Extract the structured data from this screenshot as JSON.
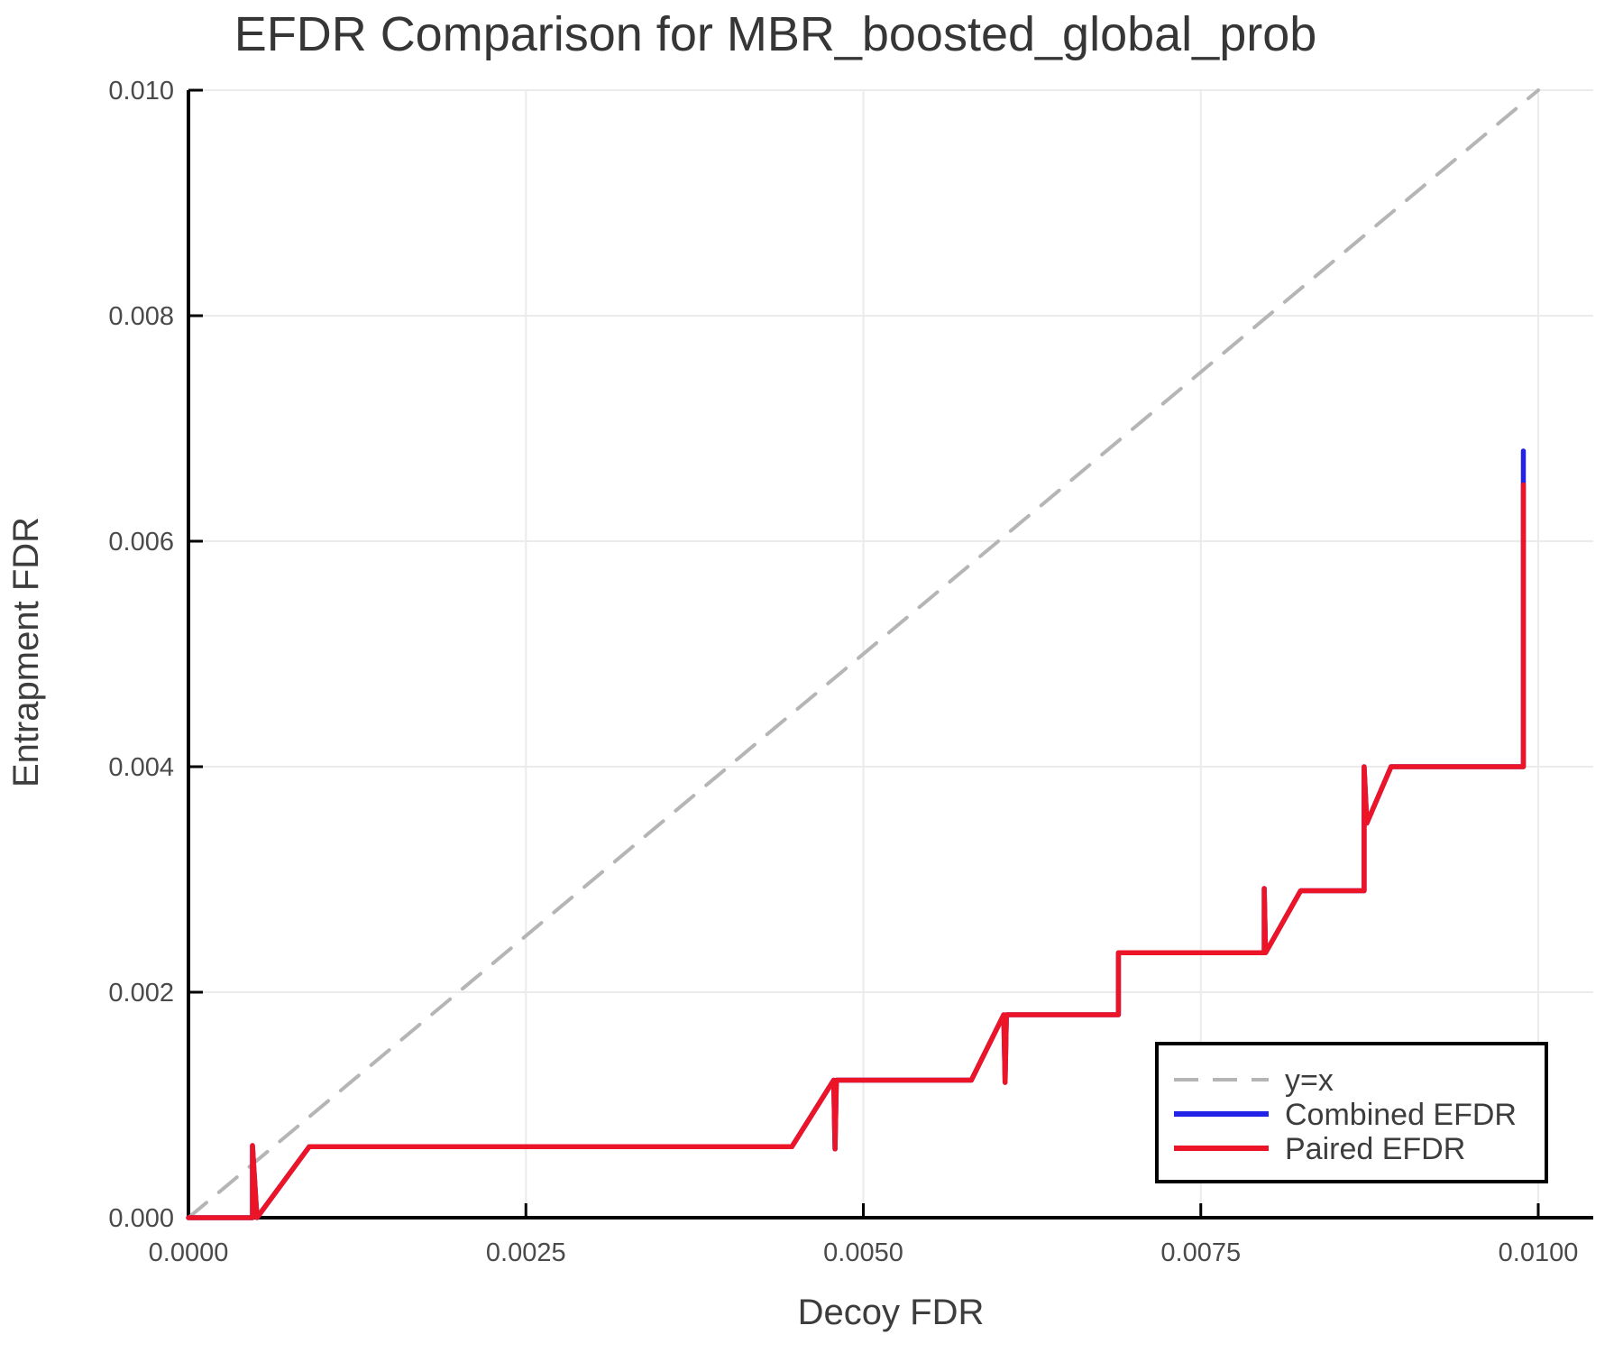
{
  "chart_data": {
    "type": "line",
    "title": "EFDR Comparison for MBR_boosted_global_prob",
    "xlabel": "Decoy FDR",
    "ylabel": "Entrapment FDR",
    "xlim": [
      0.0,
      0.010407
    ],
    "ylim": [
      0.0,
      0.01
    ],
    "grid": true,
    "legend_position": "lower right",
    "x_tick_values": [
      0.0,
      0.0025,
      0.005,
      0.0075,
      0.01
    ],
    "x_tick_labels": [
      "0.0000",
      "0.0025",
      "0.0050",
      "0.0075",
      "0.0100"
    ],
    "y_tick_values": [
      0.0,
      0.002,
      0.004,
      0.006,
      0.008,
      0.01
    ],
    "y_tick_labels": [
      "0.000",
      "0.002",
      "0.004",
      "0.006",
      "0.008",
      "0.010"
    ],
    "series": [
      {
        "name": "y=x",
        "color": "#b5b5b5",
        "style": "dashed",
        "width": 4,
        "points": [
          [
            0.0,
            0.0
          ],
          [
            0.01,
            0.01
          ]
        ]
      },
      {
        "name": "Combined EFDR",
        "color": "#2323e8",
        "style": "solid",
        "width": 5.5,
        "points": [
          [
            0.0,
            0.0
          ],
          [
            0.000474,
            0.0
          ],
          [
            0.000474,
            0.00064
          ],
          [
            0.000508,
            0.0
          ],
          [
            0.000895,
            0.00063
          ],
          [
            0.00447,
            0.00063
          ],
          [
            0.00478,
            0.00122
          ],
          [
            0.00479,
            0.00061
          ],
          [
            0.0048,
            0.00122
          ],
          [
            0.0058,
            0.00122
          ],
          [
            0.00604,
            0.0018
          ],
          [
            0.00605,
            0.0012
          ],
          [
            0.00606,
            0.0018
          ],
          [
            0.00689,
            0.0018
          ],
          [
            0.00689,
            0.00235
          ],
          [
            0.00797,
            0.00235
          ],
          [
            0.00797,
            0.00292
          ],
          [
            0.00798,
            0.00235
          ],
          [
            0.00824,
            0.0029
          ],
          [
            0.00871,
            0.0029
          ],
          [
            0.00871,
            0.004
          ],
          [
            0.00873,
            0.0035
          ],
          [
            0.00891,
            0.004
          ],
          [
            0.00989,
            0.004
          ],
          [
            0.00989,
            0.0068
          ]
        ]
      },
      {
        "name": "Paired EFDR",
        "color": "#ec1528",
        "style": "solid",
        "width": 5.5,
        "points": [
          [
            0.0,
            0.0
          ],
          [
            0.000474,
            0.0
          ],
          [
            0.000474,
            0.00064
          ],
          [
            0.000508,
            0.0
          ],
          [
            0.000895,
            0.00063
          ],
          [
            0.00447,
            0.00063
          ],
          [
            0.00478,
            0.00122
          ],
          [
            0.00479,
            0.00061
          ],
          [
            0.0048,
            0.00122
          ],
          [
            0.0058,
            0.00122
          ],
          [
            0.00604,
            0.0018
          ],
          [
            0.00605,
            0.0012
          ],
          [
            0.00606,
            0.0018
          ],
          [
            0.00689,
            0.0018
          ],
          [
            0.00689,
            0.00235
          ],
          [
            0.00797,
            0.00235
          ],
          [
            0.00797,
            0.00292
          ],
          [
            0.00798,
            0.00235
          ],
          [
            0.00824,
            0.0029
          ],
          [
            0.00871,
            0.0029
          ],
          [
            0.00871,
            0.004
          ],
          [
            0.00873,
            0.0035
          ],
          [
            0.00891,
            0.004
          ],
          [
            0.00989,
            0.004
          ],
          [
            0.00989,
            0.0065
          ]
        ]
      }
    ]
  },
  "theme": {
    "background": "#ffffff",
    "spine_color": "#000000",
    "grid_color": "#ebebeb",
    "title_color": "#363636",
    "tick_label_color": "#4a4a4a",
    "dashed_line_color": "#b5b5b5",
    "combined_color": "#2323e8",
    "paired_color": "#ec1528"
  }
}
